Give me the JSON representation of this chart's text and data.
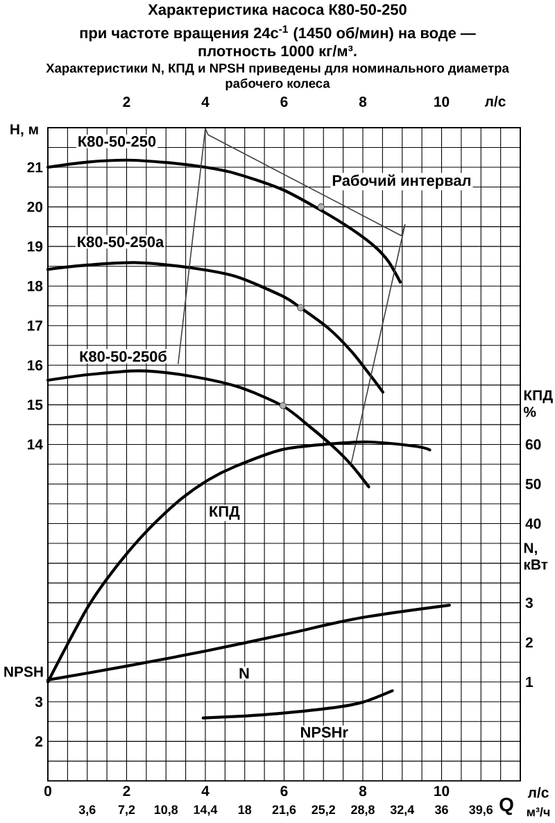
{
  "chart_data": [
    {
      "type": "line",
      "title": "Характеристика насоса К80-50-250",
      "subtitle": "при частоте вращения 24с$^{-1}$ (1450 об/мин) на воде — плотность 1000 кг/м³.",
      "annotations": [
        "Характеристики N, КПД и NPSH приведены для номинального диаметра рабочего колеса",
        "Q"
      ],
      "xlabel": "л/с",
      "x2label": "л/с",
      "ylabel": "H, м",
      "y2label": "КПД %",
      "y3label": "N, кВт",
      "xlim": [
        0,
        12
      ],
      "xticks": [
        0,
        {
          "value": 0.5,
          "label": null
        },
        {
          "value": 1,
          "label": null
        },
        {
          "value": 1.5,
          "label": null
        },
        2,
        {
          "value": 2.5,
          "label": null
        },
        {
          "value": 3,
          "label": null
        },
        {
          "value": 3.5,
          "label": null
        },
        4,
        {
          "value": 4.5,
          "label": null
        },
        {
          "value": 5,
          "label": null
        },
        {
          "value": 5.5,
          "label": null
        },
        6,
        {
          "value": 6.5,
          "label": null
        },
        {
          "value": 7,
          "label": null
        },
        {
          "value": 7.5,
          "label": null
        },
        8,
        {
          "value": 8.5,
          "label": null
        },
        {
          "value": 9,
          "label": null
        },
        {
          "value": 9.5,
          "label": null
        },
        10,
        {
          "value": 10.5,
          "label": null
        },
        {
          "value": 11,
          "label": null
        },
        {
          "value": 11.5,
          "label": null
        },
        {
          "value": 12,
          "label": null
        }
      ],
      "x2lim": [
        0,
        12
      ],
      "x2ticks": [
        2,
        4,
        6,
        8,
        10
      ],
      "ylim": [
        5.5,
        22
      ],
      "yticks": [
        {
          "value": 5.5,
          "label": null
        },
        {
          "value": 6,
          "label": null
        },
        {
          "value": 6.5,
          "label": null
        },
        {
          "value": 7,
          "label": null
        },
        {
          "value": 7.5,
          "label": null
        },
        {
          "value": 8,
          "label": null
        },
        {
          "value": 8.5,
          "label": null
        },
        {
          "value": 9,
          "label": null
        },
        {
          "value": 9.5,
          "label": null
        },
        {
          "value": 10,
          "label": null
        },
        {
          "value": 10.5,
          "label": null
        },
        {
          "value": 11,
          "label": null
        },
        {
          "value": 11.5,
          "label": null
        },
        {
          "value": 12,
          "label": null
        },
        {
          "value": 12.5,
          "label": null
        },
        {
          "value": 13,
          "label": null
        },
        {
          "value": 13.5,
          "label": null
        },
        14,
        {
          "value": 14.5,
          "label": null
        },
        15,
        {
          "value": 15.5,
          "label": null
        },
        16,
        {
          "value": 16.5,
          "label": null
        },
        17,
        {
          "value": 17.5,
          "label": null
        },
        18,
        {
          "value": 18.5,
          "label": null
        },
        19,
        {
          "value": 19.5,
          "label": null
        },
        20,
        {
          "value": 20.5,
          "label": null
        },
        21,
        {
          "value": 21.5,
          "label": null
        },
        {
          "value": 22,
          "label": null
        }
      ],
      "y2lim": [
        -25,
        140
      ],
      "y2ticks": [
        40,
        50,
        60
      ],
      "y3lim": [
        -1.5,
        15
      ],
      "y3ticks": [
        1,
        2,
        3
      ],
      "grid": true,
      "series": [
        {
          "name": "К80-50-250",
          "color": "#000000",
          "x": [
            0,
            1,
            2,
            3,
            4,
            4.78,
            5.95,
            6.89,
            7.71,
            8.3,
            8.65,
            8.95
          ],
          "values": [
            21.0,
            21.13,
            21.18,
            21.12,
            21.0,
            20.84,
            20.44,
            19.94,
            19.44,
            19.0,
            18.62,
            18.1
          ]
        },
        {
          "name": "К80-50-250а",
          "color": "#000000",
          "x": [
            0,
            1,
            2.3,
            3.7,
            4.78,
            5.95,
            6.42,
            7.13,
            7.71,
            8.18,
            8.51
          ],
          "values": [
            18.42,
            18.53,
            18.59,
            18.45,
            18.24,
            17.75,
            17.45,
            16.93,
            16.35,
            15.76,
            15.32
          ]
        },
        {
          "name": "К80-50-250б",
          "color": "#000000",
          "x": [
            0,
            1,
            2.3,
            3.4,
            4.78,
            5.95,
            6.65,
            7.24,
            7.71,
            8.15
          ],
          "values": [
            15.62,
            15.76,
            15.86,
            15.76,
            15.47,
            14.98,
            14.45,
            13.95,
            13.48,
            12.93
          ]
        },
        {
          "name": "КПД",
          "axis": "y2",
          "color": "#000000",
          "x": [
            0,
            0.55,
            1.02,
            1.49,
            2.07,
            2.66,
            3.37,
            4.07,
            4.75,
            5.95,
            7.13,
            8.18,
            9.36,
            9.7
          ],
          "values": [
            0,
            10.5,
            19.0,
            25.9,
            33.2,
            39.6,
            46.1,
            51.0,
            54.4,
            58.7,
            60.1,
            60.6,
            59.5,
            58.6
          ]
        },
        {
          "name": "N",
          "axis": "y3",
          "color": "#000000",
          "x": [
            0,
            2,
            4,
            6,
            8,
            10.2
          ],
          "values": [
            1.05,
            1.4,
            1.78,
            2.2,
            2.63,
            2.94
          ]
        },
        {
          "name": "Рабочий интервал",
          "color": "#404040",
          "x": [
            3.31,
            4.0,
            4.07,
            8.98,
            9.07,
            7.71
          ],
          "values": [
            16.04,
            21.98,
            21.82,
            19.27,
            19.55,
            13.54
          ]
        },
        {
          "type": "scatter",
          "color": "#b0b0b0",
          "marker": "circle",
          "x": [
            6.94,
            6.42,
            5.97
          ],
          "values": [
            20.0,
            17.45,
            14.98
          ]
        }
      ]
    },
    {
      "type": "line",
      "xlabel": "м³/ч",
      "ylabel": "NPSH",
      "xlim": [
        0,
        43.2
      ],
      "xticks": [
        {
          "value": 3.6,
          "label": "3,6"
        },
        {
          "value": 7.2,
          "label": "7,2"
        },
        {
          "value": 10.8,
          "label": "10,8"
        },
        {
          "value": 14.4,
          "label": "14,4"
        },
        18,
        {
          "value": 21.6,
          "label": "21,6"
        },
        {
          "value": 25.2,
          "label": "25,2"
        },
        {
          "value": 28.8,
          "label": "28,8"
        },
        {
          "value": 32.4,
          "label": "32,4"
        },
        36,
        {
          "value": 39.6,
          "label": "39,6"
        }
      ],
      "ylim": [
        1,
        17.5
      ],
      "yticks": [
        2,
        3
      ],
      "series": [
        {
          "name": "NPSHr",
          "color": "#000000",
          "x": [
            14.2,
            18,
            21,
            26.1,
            28.8,
            31.5
          ],
          "values": [
            2.59,
            2.64,
            2.7,
            2.85,
            2.99,
            3.28
          ]
        }
      ]
    }
  ]
}
